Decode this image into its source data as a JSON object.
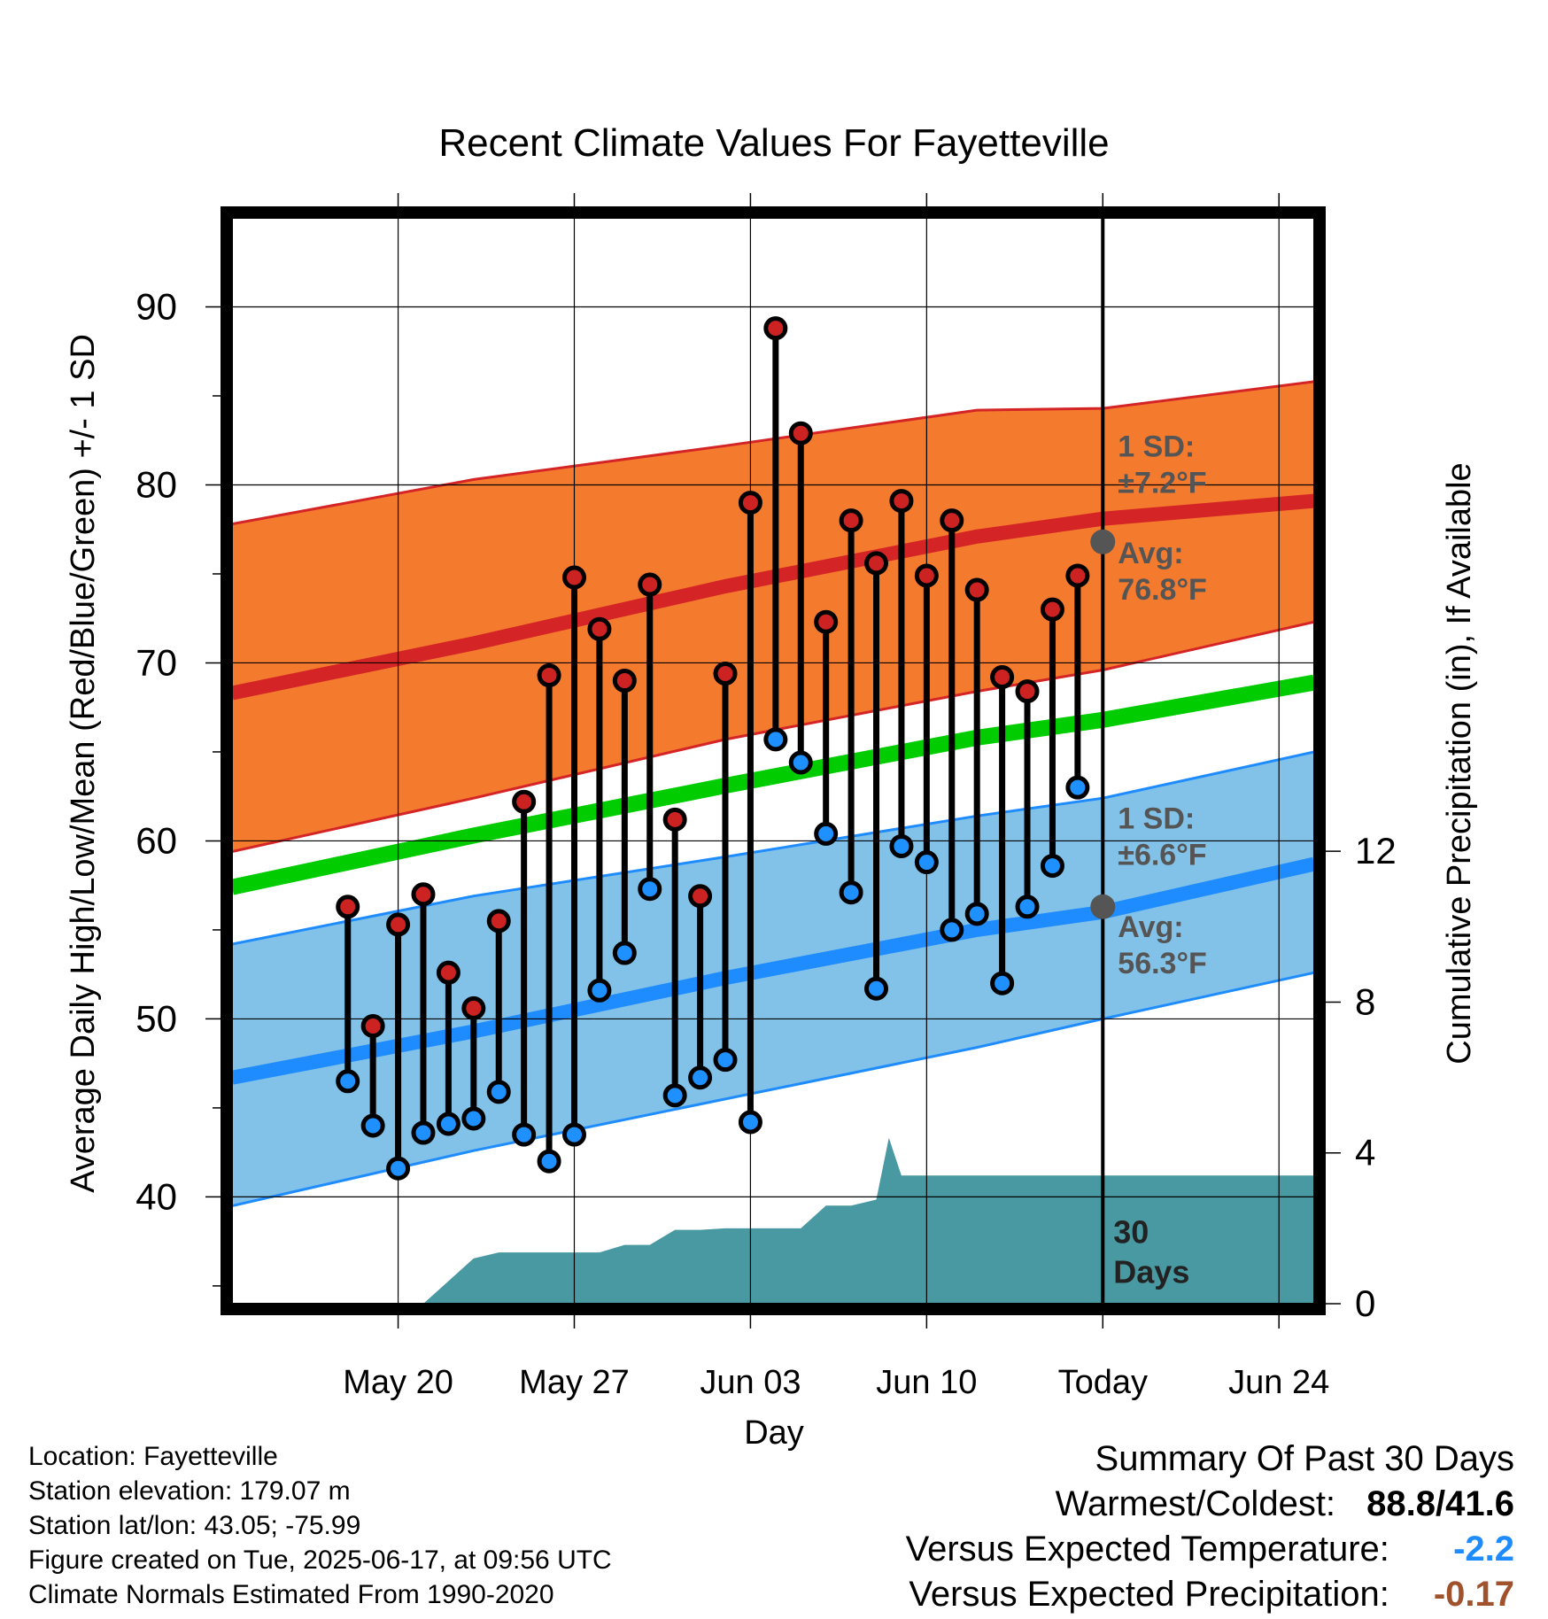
{
  "chart_data": {
    "type": "line",
    "title": "Recent Climate Values For Fayetteville",
    "xlabel": "Day",
    "ylabel_left": "Average Daily High/Low/Mean (Red/Blue/Green) +/- 1 SD",
    "ylabel_right": "Cumulative Precipitation (in), If Available",
    "ylim_left": [
      34,
      95
    ],
    "ylim_right": [
      0,
      28.8
    ],
    "xlim_days": [
      -34.6,
      8.4
    ],
    "x_ticks": [
      {
        "day": -28,
        "label": "May 20"
      },
      {
        "day": -21,
        "label": "May 27"
      },
      {
        "day": -14,
        "label": "Jun 03"
      },
      {
        "day": -7,
        "label": "Jun 10"
      },
      {
        "day": 0,
        "label": "Today"
      },
      {
        "day": 7,
        "label": "Jun 24"
      }
    ],
    "y_ticks_left": [
      40,
      50,
      60,
      70,
      80,
      90
    ],
    "y_ticks_right": [
      0,
      4,
      8,
      12
    ],
    "grid": true,
    "days": [
      -30,
      -29,
      -28,
      -27,
      -26,
      -25,
      -24,
      -23,
      -22,
      -21,
      -20,
      -19,
      -18,
      -17,
      -16,
      -15,
      -14,
      -13,
      -12,
      -11,
      -10,
      -9,
      -8,
      -7,
      -6,
      -5,
      -4,
      -3,
      -2,
      -1
    ],
    "daily_high": [
      56.3,
      49.6,
      55.3,
      57.0,
      52.6,
      50.6,
      55.5,
      62.2,
      69.3,
      74.8,
      71.9,
      69.0,
      74.4,
      61.2,
      56.9,
      69.4,
      79.0,
      88.8,
      82.9,
      72.3,
      78.0,
      75.6,
      79.1,
      74.9,
      78.0,
      74.1,
      69.2,
      68.4,
      73.0,
      74.9
    ],
    "daily_low": [
      46.5,
      44.0,
      41.6,
      43.6,
      44.1,
      44.4,
      45.9,
      43.5,
      42.0,
      43.5,
      51.6,
      53.7,
      57.3,
      45.7,
      46.7,
      47.7,
      44.2,
      65.7,
      64.4,
      60.4,
      57.1,
      51.7,
      59.7,
      58.8,
      55.0,
      55.9,
      52.0,
      56.3,
      58.6,
      63.0
    ],
    "normal_high": {
      "days": [
        -34.6,
        -25,
        -15,
        -5,
        0,
        8.4
      ],
      "values": [
        68.3,
        71.1,
        74.3,
        77.1,
        78.1,
        79.1
      ]
    },
    "normal_low": {
      "days": [
        -34.6,
        -25,
        -15,
        -5,
        0,
        8.4
      ],
      "values": [
        46.7,
        49.3,
        52.3,
        55.0,
        56.0,
        58.7
      ]
    },
    "normal_mean": {
      "days": [
        -34.6,
        -25,
        -15,
        -5,
        0,
        8.4
      ],
      "values": [
        57.4,
        60.3,
        63.1,
        65.8,
        66.8,
        68.9
      ]
    },
    "high_sd_band": {
      "upper": [
        77.8,
        80.3,
        82.2,
        84.2,
        84.3,
        85.8
      ],
      "lower": [
        59.4,
        62.4,
        65.7,
        68.4,
        69.6,
        72.3
      ]
    },
    "low_sd_band": {
      "upper": [
        54.2,
        56.9,
        59.1,
        61.4,
        62.4,
        65.0
      ],
      "lower": [
        39.5,
        42.6,
        45.5,
        48.4,
        50.0,
        52.6
      ]
    },
    "precip_cumulative": {
      "days": [
        -29,
        -28,
        -27,
        -26,
        -25,
        -24,
        -23,
        -22,
        -21,
        -20,
        -19,
        -18,
        -17,
        -16,
        -15,
        -14,
        -13,
        -12,
        -11,
        -10,
        -9,
        -8.5,
        -8,
        -7,
        -6,
        -5,
        -4,
        -3,
        -2,
        -1,
        0,
        8.4
      ],
      "values": [
        0,
        0,
        0,
        0.6,
        1.2,
        1.36,
        1.36,
        1.36,
        1.36,
        1.36,
        1.56,
        1.56,
        1.96,
        1.96,
        2.0,
        2.0,
        2.0,
        2.0,
        2.6,
        2.6,
        2.76,
        4.4,
        3.4,
        3.4,
        3.4,
        3.4,
        3.4,
        3.4,
        3.4,
        3.4,
        3.4,
        3.4
      ]
    },
    "annotations": {
      "high_sd_label": [
        "1 SD:",
        "±7.2°F"
      ],
      "high_avg_label": [
        "Avg:",
        "76.8°F"
      ],
      "low_sd_label": [
        "1 SD:",
        "±6.6°F"
      ],
      "low_avg_label": [
        "Avg:",
        "56.3°F"
      ],
      "today_high_avg": 76.8,
      "today_low_avg": 56.3,
      "window_label": [
        "30",
        "Days"
      ]
    },
    "colors": {
      "high_band": "#f47a2e",
      "high_line": "#d42426",
      "low_band": "#82c2e8",
      "low_line": "#1e8cff",
      "mean_line": "#00cc00",
      "precip": "#4899a2",
      "high_marker": "#cc2222",
      "low_marker": "#1e90ff",
      "annotation": "#555555"
    }
  },
  "info": {
    "location": "Location: Fayetteville",
    "elevation": "Station elevation: 179.07 m",
    "latlon": "Station lat/lon: 43.05; -75.99",
    "created": "Figure created on Tue, 2025-06-17, at 09:56 UTC",
    "normals": "Climate Normals Estimated From 1990-2020"
  },
  "summary": {
    "heading": "Summary Of Past 30 Days",
    "warmest_label": "Warmest/Coldest:",
    "warmest_value": "88.8/41.6",
    "temp_label": "Versus Expected Temperature:",
    "temp_value": "-2.2",
    "temp_color": "#1e8cff",
    "precip_label": "Versus Expected Precipitation:",
    "precip_value": "-0.17",
    "precip_color": "#a0522d"
  }
}
